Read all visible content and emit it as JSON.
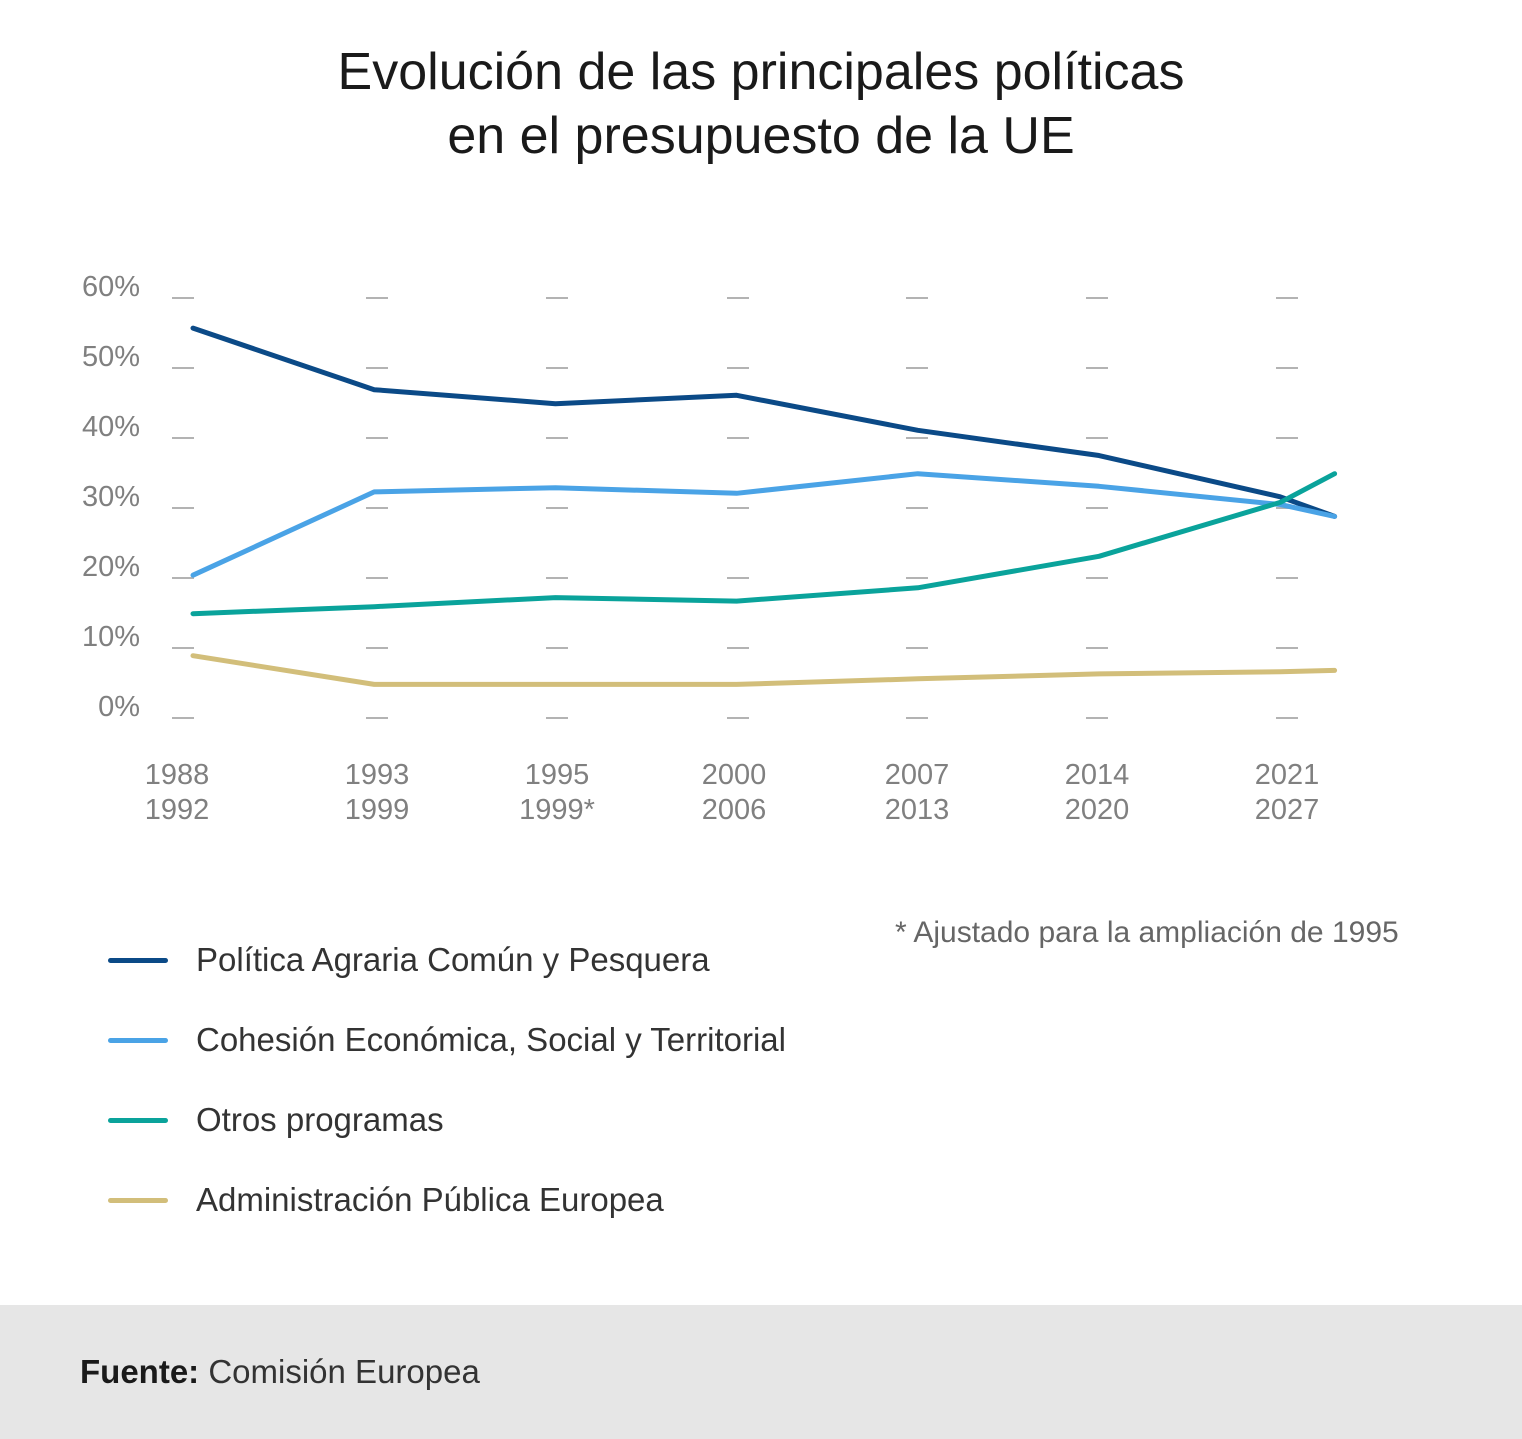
{
  "chart_data": {
    "type": "line",
    "title_lines": [
      "Evolución de las principales políticas",
      "en el presupuesto de la UE"
    ],
    "categories": [
      [
        "1988",
        "1992"
      ],
      [
        "1993",
        "1999"
      ],
      [
        "1995",
        "1999*"
      ],
      [
        "2000",
        "2006"
      ],
      [
        "2007",
        "2013"
      ],
      [
        "2014",
        "2020"
      ],
      [
        "2021",
        "2027"
      ]
    ],
    "x_values": [
      0,
      1,
      2,
      3,
      4,
      5,
      6,
      6.3
    ],
    "y_ticks": [
      0,
      10,
      20,
      30,
      40,
      50,
      60
    ],
    "y_tick_labels": [
      "0%",
      "10%",
      "20%",
      "30%",
      "40%",
      "50%",
      "60%"
    ],
    "ylim": [
      0,
      60
    ],
    "series": [
      {
        "name": "Política Agraria Común y Pesquera",
        "color": "#0b4a87",
        "values": [
          55.7,
          46.9,
          44.9,
          46.1,
          41.1,
          37.5,
          31.6,
          28.8
        ]
      },
      {
        "name": "Cohesión Económica, Social y Territorial",
        "color": "#4aa3e6",
        "values": [
          20.4,
          32.3,
          32.9,
          32.1,
          34.9,
          33.1,
          30.5,
          28.8
        ]
      },
      {
        "name": "Otros programas",
        "color": "#0aa39b",
        "values": [
          14.9,
          15.9,
          17.2,
          16.7,
          18.6,
          23.1,
          30.8,
          34.9
        ]
      },
      {
        "name": "Administración Pública Europea",
        "color": "#d2be7a",
        "values": [
          8.9,
          4.8,
          4.8,
          4.8,
          5.6,
          6.3,
          6.6,
          6.8
        ]
      }
    ],
    "footnote": "* Ajustado para la ampliación de 1995"
  },
  "footer": {
    "label": "Fuente:",
    "text": "Comisión Europea"
  }
}
